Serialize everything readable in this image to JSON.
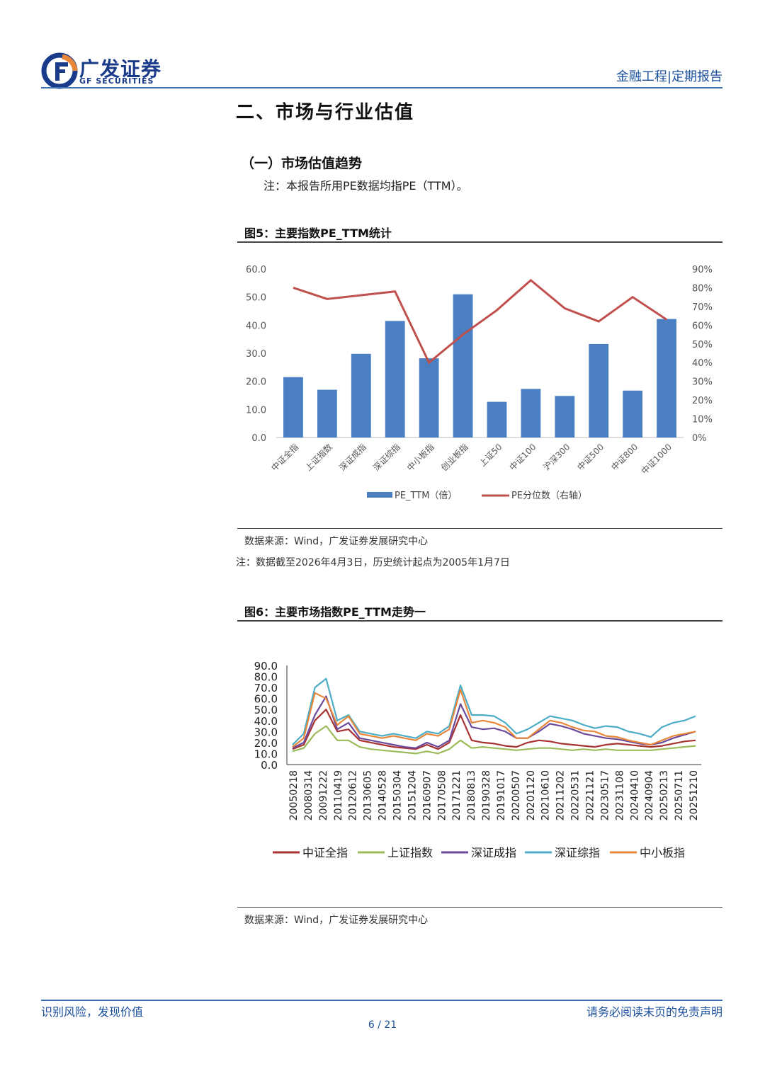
{
  "header": {
    "logo_cn": "广发证券",
    "logo_en": "GF SECURITIES",
    "right_text": "金融工程|定期报告"
  },
  "section": {
    "title": "二、市场与行业估值",
    "subtitle": "（一）市场估值趋势",
    "note": "注：本报告所用PE数据均指PE（TTM）。"
  },
  "figure5": {
    "title": "图5：主要指数PE_TTM统计",
    "source": "数据来源：Wind，广发证券发展研究中心",
    "note": "注：数据截至2026年4月3日，历史统计起点为2005年1月7日"
  },
  "figure6": {
    "title": "图6：主要市场指数PE_TTM走势一",
    "source": "数据来源：Wind，广发证券发展研究中心"
  },
  "footer": {
    "left": "识别风险，发现价值",
    "right": "请务必阅读末页的免责声明",
    "page": "6 / 21"
  },
  "chart_data": [
    {
      "type": "bar",
      "categories": [
        "中证全指",
        "上证指数",
        "深证成指",
        "深证综指",
        "中小板指",
        "创业板指",
        "上证50",
        "中证100",
        "沪深300",
        "中证500",
        "中证800",
        "中证1000"
      ],
      "series": [
        {
          "name": "PE_TTM（倍）",
          "type": "bar",
          "axis": "left",
          "color": "#4a7fc1",
          "values": [
            21.5,
            17.0,
            29.8,
            41.5,
            28.2,
            51.0,
            12.7,
            17.3,
            14.8,
            33.3,
            16.7,
            42.2
          ]
        },
        {
          "name": "PE分位数（右轴）",
          "type": "line",
          "axis": "right",
          "color": "#c0504d",
          "values": [
            0.8,
            0.74,
            0.76,
            0.78,
            0.4,
            0.55,
            0.68,
            0.84,
            0.69,
            0.62,
            0.75,
            0.63
          ]
        }
      ],
      "ylim_left": [
        0,
        60
      ],
      "yticks_left": [
        "0.0",
        "10.0",
        "20.0",
        "30.0",
        "40.0",
        "50.0",
        "60.0"
      ],
      "ylim_right": [
        0,
        0.9
      ],
      "yticks_right": [
        "0%",
        "10%",
        "20%",
        "30%",
        "40%",
        "50%",
        "60%",
        "70%",
        "80%",
        "90%"
      ],
      "legend": "bottom"
    },
    {
      "type": "line",
      "x_start": "20050218",
      "x_end": "20260403",
      "xtick_labels": [
        "20050218",
        "20080314",
        "20091222",
        "20110419",
        "20120612",
        "20130605",
        "20140528",
        "20150304",
        "20151204",
        "20160907",
        "20170508",
        "20171221",
        "20180813",
        "20190328",
        "20191017",
        "20200507",
        "20201120",
        "20210610",
        "20211202",
        "20220531",
        "20221121",
        "20230517",
        "20231108",
        "20240410",
        "20240904",
        "20250213",
        "20250711",
        "20251210"
      ],
      "ylim": [
        0,
        90
      ],
      "yticks": [
        "0.0",
        "10.0",
        "20.0",
        "30.0",
        "40.0",
        "50.0",
        "60.0",
        "70.0",
        "80.0",
        "90.0"
      ],
      "legend": "bottom",
      "series": [
        {
          "name": "中证全指",
          "color": "#a83232",
          "values": [
            14,
            18,
            40,
            50,
            30,
            32,
            22,
            20,
            18,
            16,
            15,
            14,
            18,
            14,
            20,
            45,
            22,
            20,
            19,
            17,
            16,
            20,
            22,
            21,
            19,
            18,
            17,
            16,
            18,
            19,
            18,
            17,
            16,
            17,
            19,
            21,
            22
          ]
        },
        {
          "name": "上证指数",
          "color": "#9bbb59",
          "values": [
            12,
            15,
            28,
            35,
            22,
            22,
            16,
            14,
            13,
            12,
            11,
            10,
            12,
            10,
            14,
            22,
            15,
            16,
            15,
            14,
            13,
            14,
            15,
            15,
            14,
            13,
            14,
            13,
            14,
            13,
            13,
            13,
            13,
            14,
            15,
            16,
            17
          ]
        },
        {
          "name": "深证成指",
          "color": "#6b4a9b",
          "values": [
            15,
            20,
            45,
            62,
            32,
            38,
            24,
            22,
            20,
            18,
            16,
            15,
            20,
            16,
            22,
            55,
            34,
            32,
            33,
            30,
            24,
            24,
            30,
            37,
            35,
            32,
            28,
            26,
            24,
            23,
            21,
            19,
            18,
            20,
            24,
            27,
            30
          ]
        },
        {
          "name": "深证综指",
          "color": "#4bacc6",
          "values": [
            18,
            28,
            70,
            78,
            40,
            45,
            30,
            28,
            26,
            28,
            26,
            24,
            30,
            28,
            35,
            72,
            45,
            45,
            44,
            38,
            28,
            32,
            38,
            44,
            42,
            40,
            36,
            33,
            35,
            34,
            30,
            28,
            25,
            34,
            38,
            40,
            44
          ]
        },
        {
          "name": "中小板指",
          "color": "#e8873a",
          "values": [
            16,
            24,
            65,
            60,
            36,
            44,
            28,
            26,
            24,
            26,
            24,
            22,
            28,
            26,
            32,
            68,
            38,
            40,
            38,
            34,
            24,
            24,
            32,
            40,
            38,
            34,
            31,
            30,
            26,
            25,
            22,
            20,
            18,
            22,
            26,
            28,
            30
          ]
        }
      ]
    }
  ]
}
